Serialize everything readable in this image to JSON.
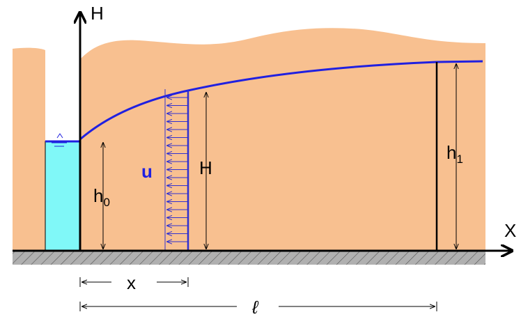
{
  "axes": {
    "vertical": "H",
    "horizontal": "X"
  },
  "labels": {
    "velocity": "u",
    "height": "H",
    "h0": {
      "base": "h",
      "sub": "0"
    },
    "h1": {
      "base": "h",
      "sub": "1"
    },
    "distance": "x",
    "length": "ℓ"
  }
}
